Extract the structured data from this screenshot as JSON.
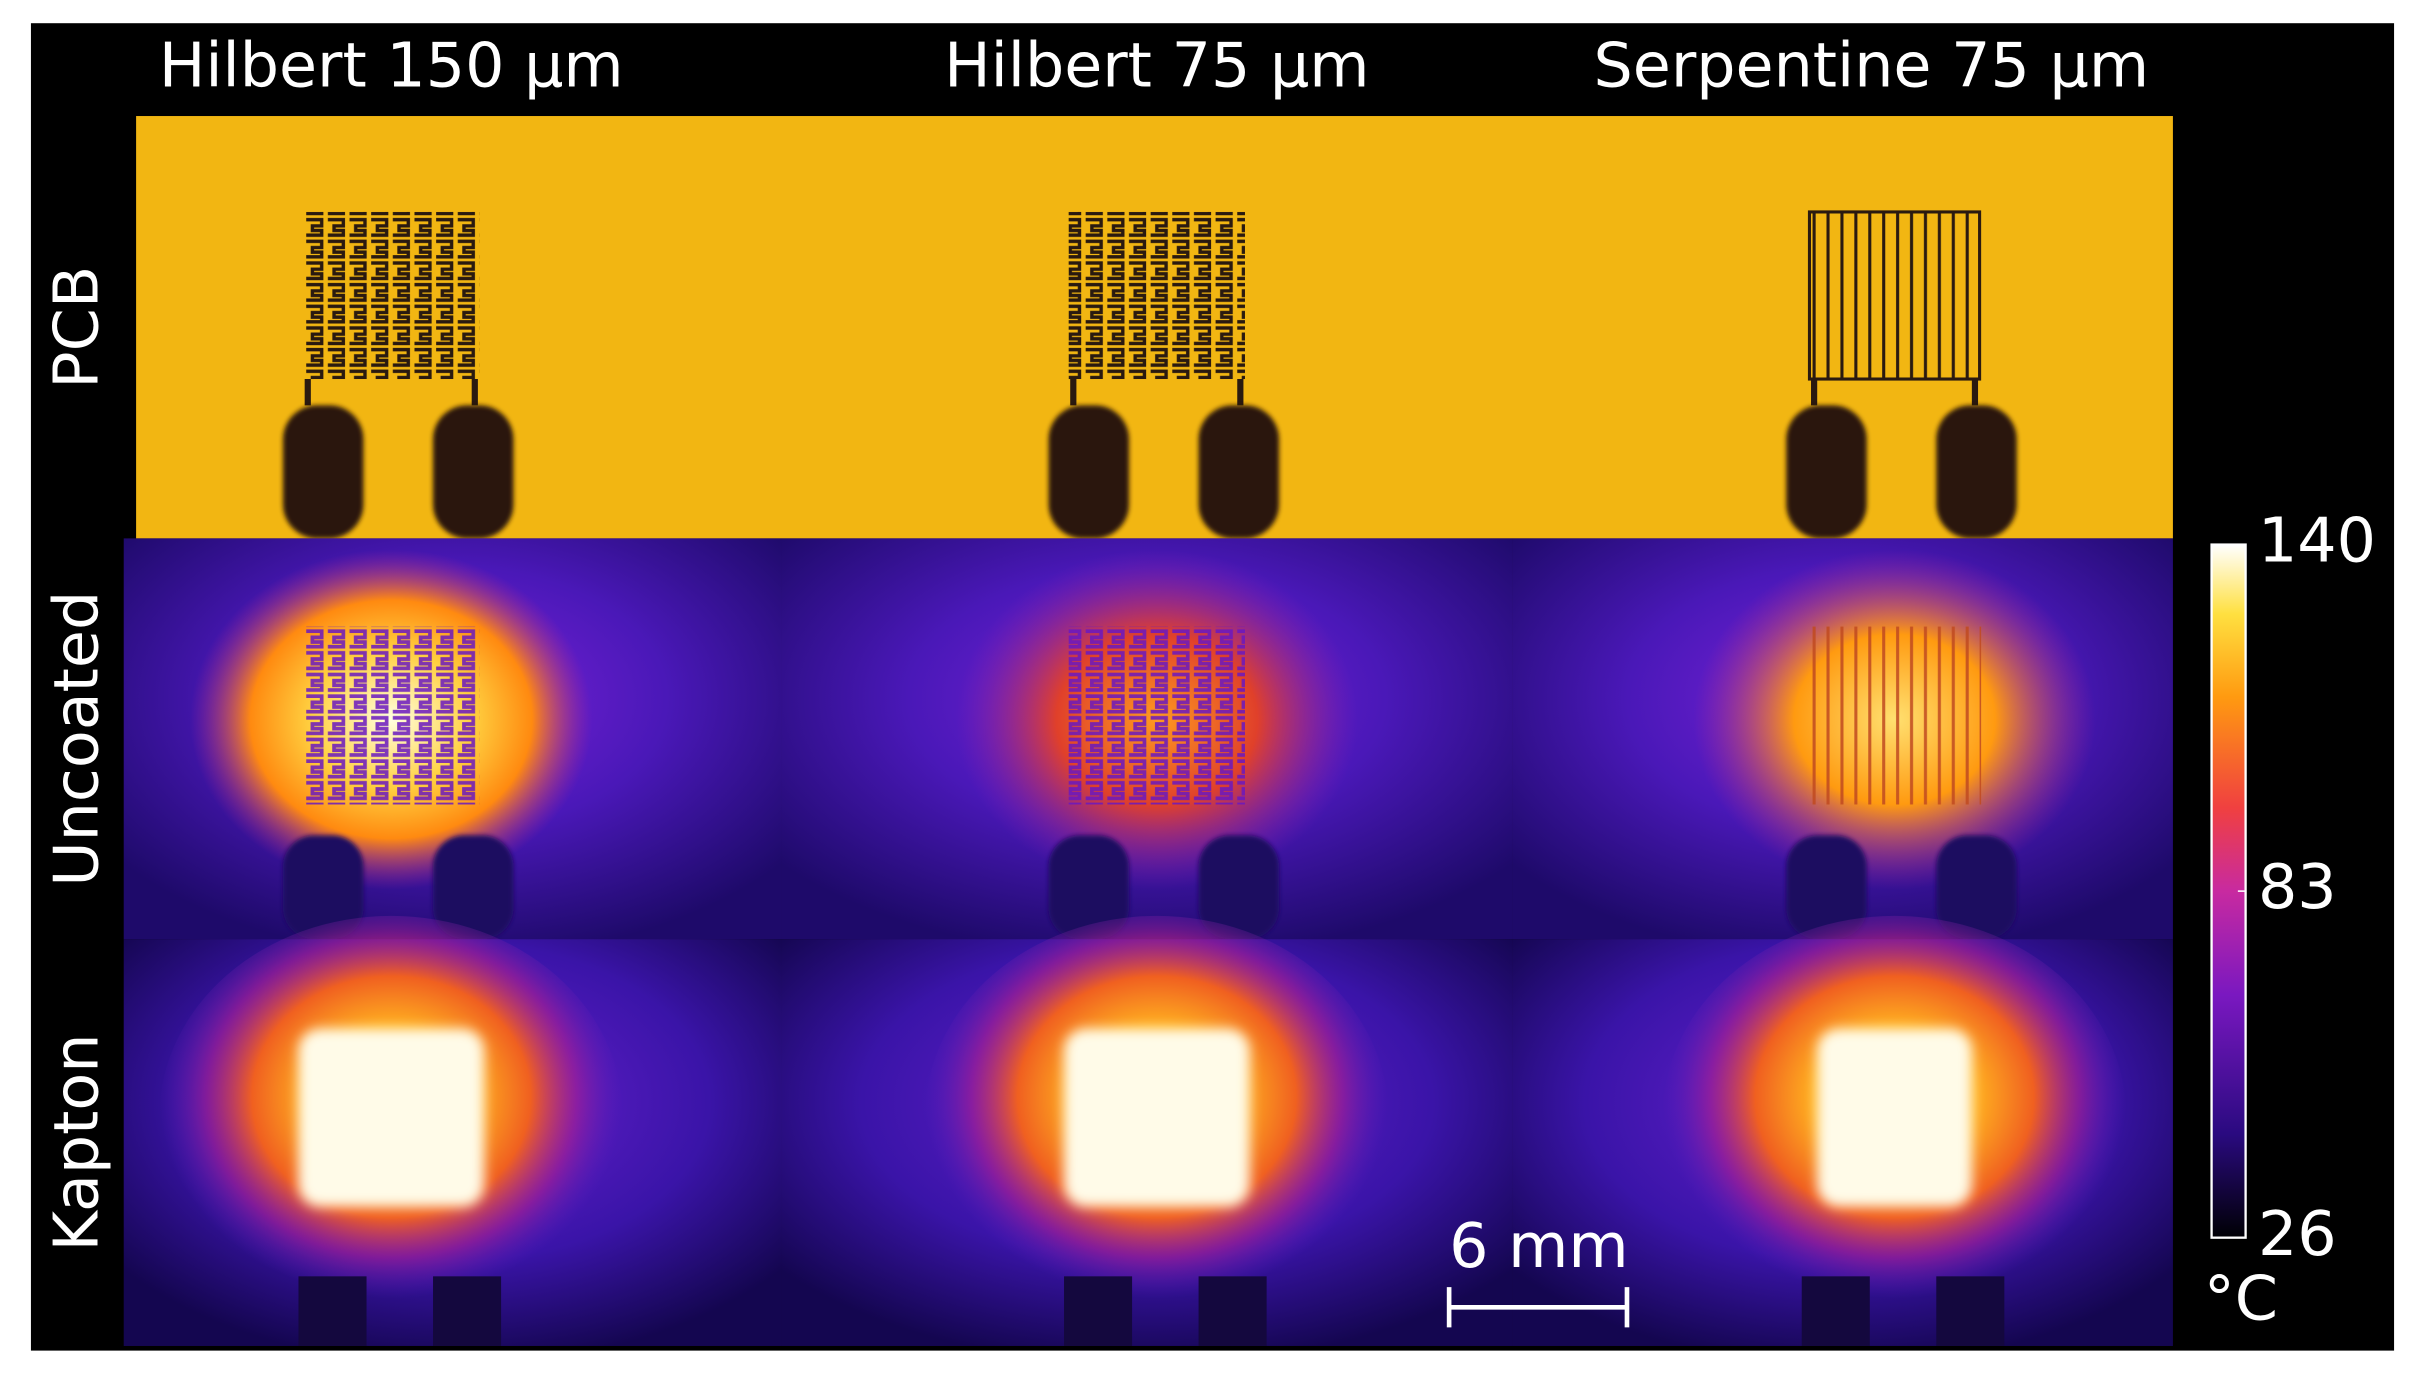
{
  "columns": [
    "Hilbert 150 µm",
    "Hilbert 75 µm",
    "Serpentine 75 µm"
  ],
  "rows": [
    "PCB",
    "Uncoated",
    "Kapton"
  ],
  "colorbar": {
    "lim": [
      26,
      140
    ],
    "ticks": [
      140,
      83,
      26
    ],
    "unit": "°C"
  },
  "scale_bar": "6 mm"
}
